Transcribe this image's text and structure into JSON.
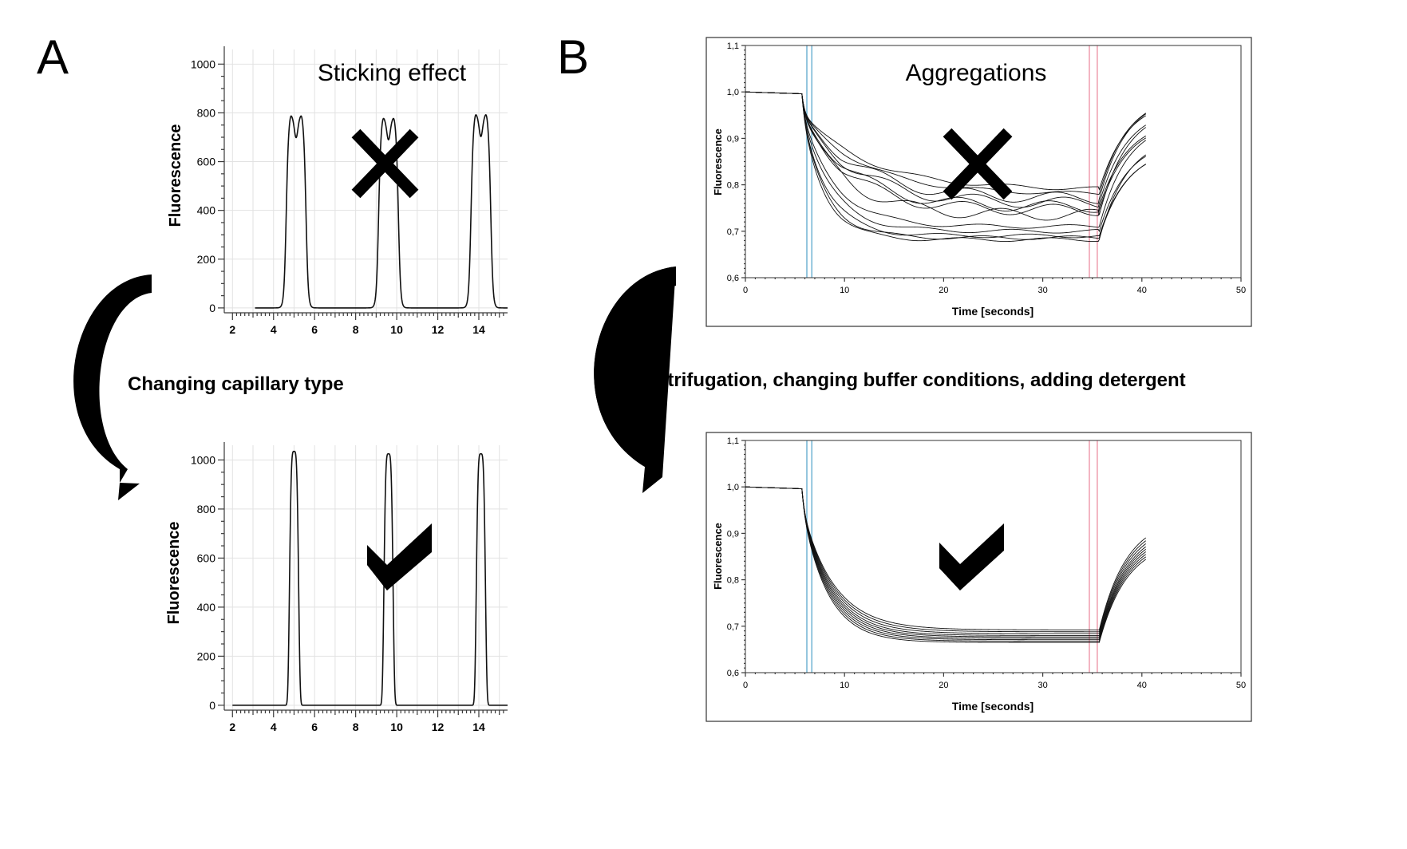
{
  "panel_labels": {
    "a": "A",
    "b": "B"
  },
  "captions": {
    "a_top": "Sticking effect",
    "a_transition": "Changing capillary type",
    "b_top": "Aggregations",
    "b_transition": "Centrifugation, changing buffer conditions, adding detergent"
  },
  "marks": {
    "bad": "cross-mark-icon",
    "good": "check-mark-icon"
  },
  "colors": {
    "curve": "#111111",
    "cold_marker": "#7ab8d6",
    "hot_marker": "#f0a2b2"
  },
  "chart_data": [
    {
      "id": "a_top",
      "type": "line",
      "title": "Sticking effect",
      "xlabel": "",
      "ylabel": "Fluorescence",
      "xlim": [
        1.6,
        15.4
      ],
      "ylim": [
        -20,
        1060
      ],
      "x_ticks": [
        2,
        4,
        6,
        8,
        10,
        12,
        14
      ],
      "y_ticks": [
        0,
        200,
        400,
        600,
        800,
        1000
      ],
      "grid": true,
      "peak_shape": "double (sticking)",
      "peaks": [
        {
          "center": 5.1,
          "height": 785
        },
        {
          "center": 9.6,
          "height": 775
        },
        {
          "center": 14.1,
          "height": 790
        }
      ],
      "annotation": "cross"
    },
    {
      "id": "a_bottom",
      "type": "line",
      "title": "",
      "xlabel": "",
      "ylabel": "Fluorescence",
      "xlim": [
        1.6,
        15.4
      ],
      "ylim": [
        -20,
        1060
      ],
      "x_ticks": [
        2,
        4,
        6,
        8,
        10,
        12,
        14
      ],
      "y_ticks": [
        0,
        200,
        400,
        600,
        800,
        1000
      ],
      "grid": true,
      "peak_shape": "single",
      "peaks": [
        {
          "center": 5.0,
          "height": 1035
        },
        {
          "center": 9.6,
          "height": 1025
        },
        {
          "center": 14.1,
          "height": 1025
        }
      ],
      "annotation": "check"
    },
    {
      "id": "b_top",
      "type": "line",
      "title": "Aggregations",
      "xlabel": "Time [seconds]",
      "ylabel": "Fluorescence",
      "xlim": [
        0,
        50
      ],
      "ylim": [
        0.6,
        1.1
      ],
      "x_ticks": [
        0,
        10,
        20,
        30,
        40,
        50
      ],
      "y_ticks": [
        "0,6",
        "0,7",
        "0,8",
        "0,9",
        "1,0",
        "1,1"
      ],
      "grid": false,
      "ir_on": 5.7,
      "ir_off": 35.7,
      "cold_region": [
        6.2,
        6.7
      ],
      "hot_region": [
        34.7,
        35.5
      ],
      "series_plateaus": [
        0.682,
        0.686,
        0.69,
        0.7,
        0.71,
        0.735,
        0.745,
        0.752,
        0.76,
        0.77,
        0.78,
        0.79
      ],
      "annotation": "cross"
    },
    {
      "id": "b_bottom",
      "type": "line",
      "title": "",
      "xlabel": "Time [seconds]",
      "ylabel": "Fluorescence",
      "xlim": [
        0,
        50
      ],
      "ylim": [
        0.6,
        1.1
      ],
      "x_ticks": [
        0,
        10,
        20,
        30,
        40,
        50
      ],
      "y_ticks": [
        "0,6",
        "0,7",
        "0,8",
        "0,9",
        "1,0",
        "1,1"
      ],
      "grid": false,
      "ir_on": 5.7,
      "ir_off": 35.7,
      "cold_region": [
        6.2,
        6.7
      ],
      "hot_region": [
        34.7,
        35.5
      ],
      "series_plateaus": [
        0.665,
        0.668,
        0.671,
        0.674,
        0.677,
        0.68,
        0.684,
        0.688,
        0.692
      ],
      "annotation": "check"
    }
  ]
}
